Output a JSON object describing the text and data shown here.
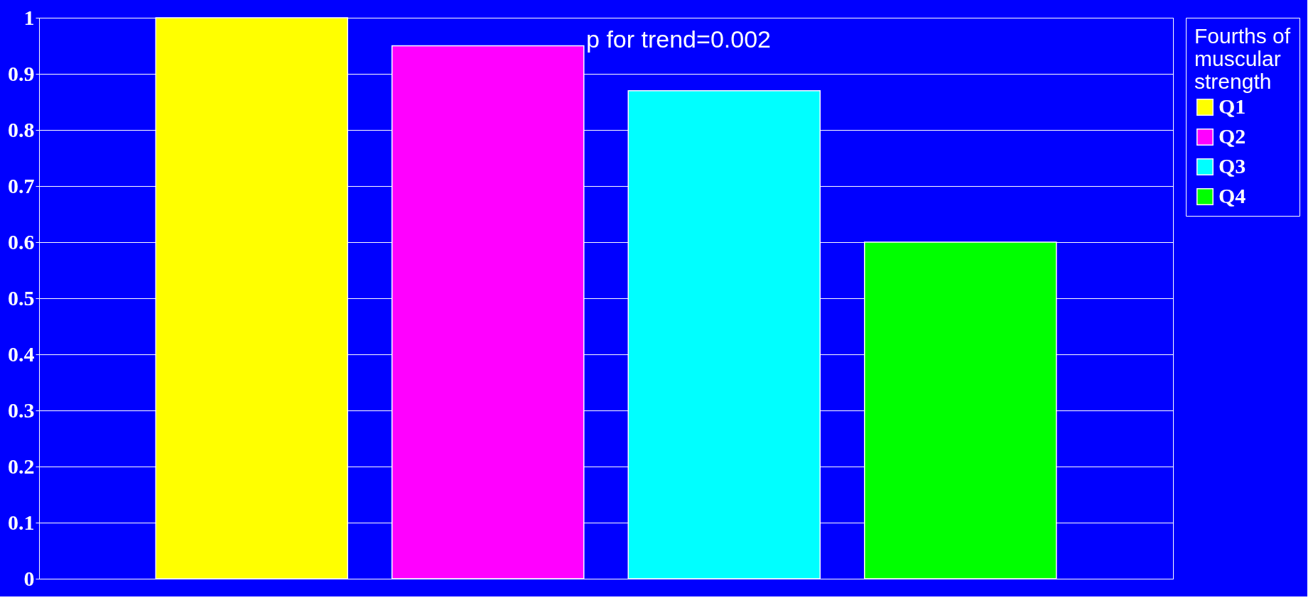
{
  "chart_data": {
    "type": "bar",
    "categories": [
      null,
      null,
      null,
      null
    ],
    "series": [
      {
        "name": "Q1",
        "color": "#ffff00",
        "values": [
          1.0,
          null,
          null,
          null
        ]
      },
      {
        "name": "Q2",
        "color": "#ff00ff",
        "values": [
          null,
          0.95,
          null,
          null
        ]
      },
      {
        "name": "Q3",
        "color": "#00ffff",
        "values": [
          null,
          null,
          0.87,
          null
        ]
      },
      {
        "name": "Q4",
        "color": "#00ff00",
        "values": [
          null,
          null,
          null,
          0.6
        ]
      }
    ],
    "legend_title": "Fourths of muscular strength",
    "annotations": [
      "p for trend=0.002"
    ],
    "ylim": [
      0,
      1
    ],
    "yticks": [
      0,
      0.1,
      0.2,
      0.3,
      0.4,
      0.5,
      0.6,
      0.7,
      0.8,
      0.9,
      1
    ],
    "grid": "y",
    "legend": "right"
  }
}
